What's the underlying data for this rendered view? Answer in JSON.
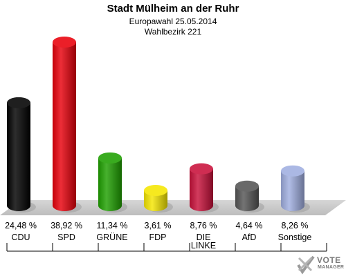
{
  "header": {
    "title": "Stadt Mülheim an der Ruhr",
    "subtitle": "Europawahl 25.05.2014",
    "district": "Wahlbezirk 221"
  },
  "logo": {
    "line1": "VOTE",
    "line2": "MANAGER",
    "icon": "ballot-cross-icon"
  },
  "chart_data": {
    "type": "bar",
    "style": "3d-cylinder",
    "title": "Stadt Mülheim an der Ruhr",
    "categories": [
      "CDU",
      "SPD",
      "GRÜNE",
      "FDP",
      "DIE LINKE",
      "AfD",
      "Sonstige"
    ],
    "values": [
      24.48,
      38.92,
      11.34,
      3.61,
      8.76,
      4.64,
      8.26
    ],
    "value_labels": [
      "24,48 %",
      "38,92 %",
      "11,34 %",
      "3,61 %",
      "8,76 %",
      "4,64 %",
      "8,26 %"
    ],
    "colors": [
      "#000000",
      "#e8000b",
      "#1ea000",
      "#f5e600",
      "#c8103a",
      "#555555",
      "#a0aee0"
    ],
    "ylim": [
      0,
      40
    ],
    "grid": false,
    "legend": "none"
  }
}
